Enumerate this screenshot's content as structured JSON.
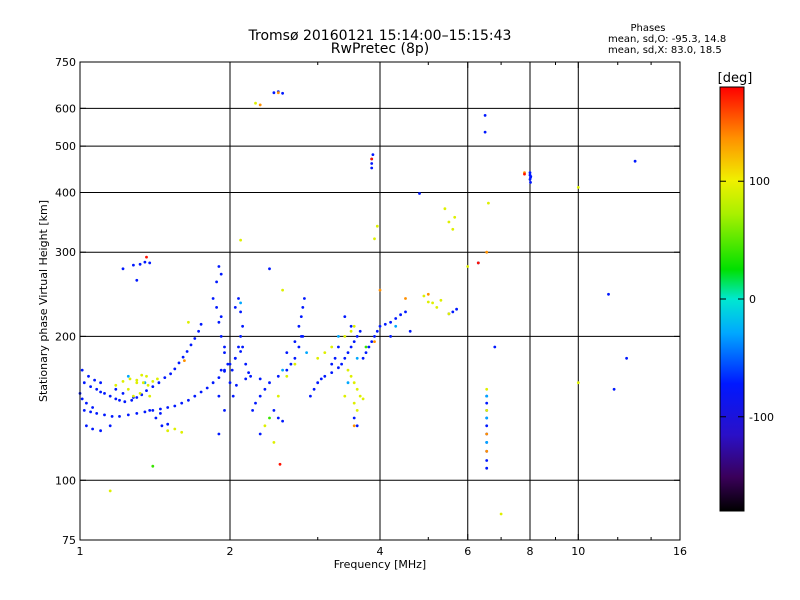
{
  "title": {
    "line1": "Tromsø 20160121 15:14:00–15:15:43",
    "line2": "RwPretec (8p)"
  },
  "stats": {
    "heading": "Phases",
    "o_line": "mean, sd,O: -95.3, 14.8",
    "x_line": "mean, sd,X:  83.0, 18.5"
  },
  "colorbar": {
    "unit_label": "[deg]",
    "ticks": [
      {
        "value": 100,
        "label": "100"
      },
      {
        "value": 0,
        "label": "0"
      },
      {
        "value": -100,
        "label": "-100"
      }
    ],
    "range": [
      -180,
      180
    ]
  },
  "chart_data": {
    "type": "scatter",
    "xlabel": "Frequency [MHz]",
    "ylabel": "Stationary phase Virtual Height [km]",
    "x_scale": "log",
    "y_scale": "log",
    "xlim": [
      1,
      16
    ],
    "ylim": [
      75,
      750
    ],
    "x_ticks": [
      {
        "value": 1,
        "label": "1"
      },
      {
        "value": 2,
        "label": "2"
      },
      {
        "value": 4,
        "label": "4"
      },
      {
        "value": 6,
        "label": "6"
      },
      {
        "value": 8,
        "label": "8"
      },
      {
        "value": 10,
        "label": "10"
      },
      {
        "value": 16,
        "label": "16"
      }
    ],
    "y_ticks": [
      {
        "value": 75,
        "label": "75"
      },
      {
        "value": 100,
        "label": "100"
      },
      {
        "value": 200,
        "label": "200"
      },
      {
        "value": 300,
        "label": "300"
      },
      {
        "value": 400,
        "label": "400"
      },
      {
        "value": 500,
        "label": "500"
      },
      {
        "value": 600,
        "label": "600"
      },
      {
        "value": 750,
        "label": "750"
      }
    ],
    "x_gridlines": [
      2,
      4,
      6,
      8,
      10
    ],
    "y_gridlines": [
      100,
      200,
      300,
      400,
      500,
      600
    ],
    "grid": true,
    "color_encoding": "phase [deg]",
    "series": [
      {
        "trace": "low-frequency O echoes",
        "phase": -100,
        "points": [
          [
            1.02,
            160
          ],
          [
            1.05,
            157
          ],
          [
            1.08,
            155
          ],
          [
            1.1,
            153
          ],
          [
            1.12,
            152
          ],
          [
            1.15,
            150
          ],
          [
            1.18,
            148
          ],
          [
            1.2,
            147
          ],
          [
            1.23,
            146
          ],
          [
            1.27,
            147
          ],
          [
            1.3,
            149
          ],
          [
            1.33,
            151
          ],
          [
            1.36,
            154
          ],
          [
            1.4,
            157
          ],
          [
            1.44,
            160
          ],
          [
            1.48,
            164
          ],
          [
            1.52,
            167
          ],
          [
            1.55,
            171
          ],
          [
            1.58,
            176
          ],
          [
            1.61,
            181
          ],
          [
            1.64,
            186
          ],
          [
            1.67,
            192
          ],
          [
            1.7,
            198
          ],
          [
            1.73,
            205
          ],
          [
            1.75,
            212
          ],
          [
            1.02,
            140
          ],
          [
            1.05,
            139
          ],
          [
            1.08,
            138
          ],
          [
            1.12,
            137
          ],
          [
            1.16,
            136
          ],
          [
            1.2,
            136
          ],
          [
            1.25,
            137
          ],
          [
            1.3,
            138
          ],
          [
            1.35,
            139
          ],
          [
            1.4,
            140
          ],
          [
            1.45,
            141
          ],
          [
            1.5,
            142
          ],
          [
            1.55,
            143
          ],
          [
            1.6,
            145
          ],
          [
            1.65,
            147
          ],
          [
            1.7,
            150
          ],
          [
            1.75,
            153
          ],
          [
            1.8,
            156
          ],
          [
            1.85,
            160
          ],
          [
            1.9,
            164
          ],
          [
            1.95,
            169
          ],
          [
            2.0,
            175
          ],
          [
            2.05,
            180
          ],
          [
            2.1,
            186
          ],
          [
            1.03,
            130
          ],
          [
            1.06,
            128
          ],
          [
            1.1,
            127
          ],
          [
            1.15,
            130
          ],
          [
            1.01,
            170
          ],
          [
            1.04,
            165
          ],
          [
            1.07,
            162
          ],
          [
            1.1,
            160
          ],
          [
            1.18,
            155
          ],
          [
            1.22,
            152
          ],
          [
            1.28,
            149
          ],
          [
            1.01,
            148
          ],
          [
            1.0,
            152
          ],
          [
            1.03,
            145
          ],
          [
            1.06,
            142
          ],
          [
            1.22,
            277
          ],
          [
            1.28,
            282
          ],
          [
            1.32,
            283
          ],
          [
            1.35,
            286
          ],
          [
            1.38,
            285
          ],
          [
            1.3,
            262
          ],
          [
            1.38,
            140
          ],
          [
            1.42,
            135
          ],
          [
            1.46,
            130
          ],
          [
            1.5,
            131
          ],
          [
            1.45,
            138
          ],
          [
            1.9,
            125
          ],
          [
            1.95,
            140
          ],
          [
            1.9,
            150
          ],
          [
            1.92,
            170
          ],
          [
            1.98,
            175
          ],
          [
            1.95,
            185
          ],
          [
            1.92,
            200
          ],
          [
            1.9,
            214
          ],
          [
            1.88,
            230
          ],
          [
            1.85,
            240
          ],
          [
            1.88,
            260
          ],
          [
            1.9,
            280
          ],
          [
            1.92,
            270
          ],
          [
            1.92,
            220
          ],
          [
            1.95,
            190
          ],
          [
            1.95,
            170
          ],
          [
            2.0,
            160
          ],
          [
            2.02,
            170
          ],
          [
            2.05,
            180
          ],
          [
            2.08,
            190
          ],
          [
            2.1,
            200
          ],
          [
            2.12,
            210
          ],
          [
            2.1,
            225
          ],
          [
            2.08,
            240
          ],
          [
            2.05,
            230
          ],
          [
            2.12,
            190
          ],
          [
            2.15,
            175
          ],
          [
            2.18,
            168
          ],
          [
            2.2,
            165
          ],
          [
            2.15,
            163
          ],
          [
            2.06,
            158
          ],
          [
            2.03,
            150
          ],
          [
            2.22,
            140
          ],
          [
            2.25,
            145
          ],
          [
            2.3,
            150
          ],
          [
            2.35,
            155
          ],
          [
            2.4,
            160
          ],
          [
            2.3,
            163
          ],
          [
            2.5,
            165
          ],
          [
            2.6,
            170
          ],
          [
            2.65,
            175
          ],
          [
            2.7,
            180
          ],
          [
            2.75,
            190
          ],
          [
            2.8,
            200
          ],
          [
            2.75,
            210
          ],
          [
            2.78,
            220
          ],
          [
            2.8,
            230
          ],
          [
            2.82,
            240
          ],
          [
            2.78,
            200
          ],
          [
            2.7,
            195
          ],
          [
            2.6,
            185
          ],
          [
            2.45,
            140
          ],
          [
            2.5,
            135
          ],
          [
            2.55,
            133
          ],
          [
            2.3,
            125
          ],
          [
            2.4,
            277
          ],
          [
            2.45,
            647
          ],
          [
            2.5,
            650
          ],
          [
            2.55,
            645
          ],
          [
            2.9,
            150
          ],
          [
            2.95,
            155
          ],
          [
            3.0,
            160
          ],
          [
            3.05,
            163
          ],
          [
            3.1,
            165
          ],
          [
            3.2,
            168
          ],
          [
            3.3,
            172
          ],
          [
            3.35,
            175
          ],
          [
            3.4,
            180
          ],
          [
            3.45,
            185
          ],
          [
            3.5,
            190
          ],
          [
            3.55,
            195
          ],
          [
            3.6,
            200
          ],
          [
            3.65,
            205
          ],
          [
            3.5,
            210
          ],
          [
            3.4,
            220
          ],
          [
            3.3,
            190
          ],
          [
            3.25,
            180
          ],
          [
            3.2,
            175
          ],
          [
            3.7,
            180
          ],
          [
            3.75,
            185
          ],
          [
            3.8,
            190
          ],
          [
            3.85,
            195
          ],
          [
            3.9,
            200
          ],
          [
            3.95,
            205
          ],
          [
            4.0,
            210
          ],
          [
            4.1,
            212
          ],
          [
            4.2,
            214
          ],
          [
            4.3,
            218
          ],
          [
            4.4,
            222
          ],
          [
            4.5,
            225
          ],
          [
            4.2,
            200
          ],
          [
            4.6,
            205
          ],
          [
            3.6,
            130
          ],
          [
            3.55,
            135
          ],
          [
            3.85,
            460
          ],
          [
            3.85,
            470
          ],
          [
            3.87,
            480
          ],
          [
            3.85,
            450
          ],
          [
            4.8,
            398
          ],
          [
            5.5,
            223
          ],
          [
            5.6,
            225
          ],
          [
            5.7,
            228
          ],
          [
            6.3,
            285
          ],
          [
            6.5,
            580
          ],
          [
            6.5,
            535
          ],
          [
            6.8,
            190
          ],
          [
            6.55,
            150
          ],
          [
            6.55,
            145
          ],
          [
            6.55,
            140
          ],
          [
            6.55,
            135
          ],
          [
            6.55,
            130
          ],
          [
            6.55,
            125
          ],
          [
            6.55,
            120
          ],
          [
            6.55,
            115
          ],
          [
            6.55,
            110
          ],
          [
            6.55,
            106
          ],
          [
            8.0,
            426
          ],
          [
            8.02,
            430
          ],
          [
            8.0,
            435
          ],
          [
            8.03,
            432
          ],
          [
            8.02,
            420
          ],
          [
            8.0,
            440
          ],
          [
            11.5,
            245
          ],
          [
            11.8,
            155
          ],
          [
            12.5,
            180
          ],
          [
            13.0,
            465
          ]
        ]
      },
      {
        "trace": "low-frequency O echoes (cyan)",
        "phase": -60,
        "points": [
          [
            1.25,
            165
          ],
          [
            1.35,
            160
          ],
          [
            2.1,
            235
          ],
          [
            2.55,
            170
          ],
          [
            2.85,
            185
          ],
          [
            3.3,
            200
          ],
          [
            3.45,
            160
          ],
          [
            3.6,
            180
          ],
          [
            4.3,
            210
          ],
          [
            6.55,
            150
          ],
          [
            6.55,
            135
          ],
          [
            6.55,
            120
          ]
        ]
      },
      {
        "trace": "scattered X echoes",
        "phase": 90,
        "points": [
          [
            1.18,
            158
          ],
          [
            1.22,
            161
          ],
          [
            1.26,
            163
          ],
          [
            1.3,
            162
          ],
          [
            1.34,
            160
          ],
          [
            1.37,
            158
          ],
          [
            1.4,
            161
          ],
          [
            1.43,
            163
          ],
          [
            1.36,
            165
          ],
          [
            1.33,
            166
          ],
          [
            1.3,
            160
          ],
          [
            1.25,
            155
          ],
          [
            1.28,
            150
          ],
          [
            1.32,
            152
          ],
          [
            1.38,
            150
          ],
          [
            1.5,
            127
          ],
          [
            1.55,
            128
          ],
          [
            1.6,
            126
          ],
          [
            1.65,
            214
          ],
          [
            2.25,
            615
          ],
          [
            2.1,
            318
          ],
          [
            2.55,
            250
          ],
          [
            2.6,
            165
          ],
          [
            2.7,
            175
          ],
          [
            2.5,
            150
          ],
          [
            2.35,
            130
          ],
          [
            2.45,
            120
          ],
          [
            3.0,
            180
          ],
          [
            3.1,
            185
          ],
          [
            3.2,
            190
          ],
          [
            3.4,
            200
          ],
          [
            3.5,
            205
          ],
          [
            3.55,
            210
          ],
          [
            3.45,
            170
          ],
          [
            3.5,
            165
          ],
          [
            3.55,
            160
          ],
          [
            3.6,
            155
          ],
          [
            3.65,
            150
          ],
          [
            3.7,
            148
          ],
          [
            3.4,
            150
          ],
          [
            3.55,
            145
          ],
          [
            3.6,
            140
          ],
          [
            3.9,
            320
          ],
          [
            3.95,
            340
          ],
          [
            4.9,
            243
          ],
          [
            5.0,
            236
          ],
          [
            5.1,
            235
          ],
          [
            5.2,
            230
          ],
          [
            5.3,
            238
          ],
          [
            5.5,
            347
          ],
          [
            5.6,
            335
          ],
          [
            5.65,
            355
          ],
          [
            5.4,
            370
          ],
          [
            5.5,
            223
          ],
          [
            6.0,
            280
          ],
          [
            6.6,
            380
          ],
          [
            6.55,
            155
          ],
          [
            6.55,
            140
          ],
          [
            7.0,
            85
          ],
          [
            10.0,
            410
          ],
          [
            10.0,
            160
          ],
          [
            1.15,
            95
          ]
        ]
      },
      {
        "trace": "scattered X echoes (orange)",
        "phase": 140,
        "points": [
          [
            1.62,
            178
          ],
          [
            2.3,
            610
          ],
          [
            2.5,
            647
          ],
          [
            3.55,
            130
          ],
          [
            3.9,
            195
          ],
          [
            4.0,
            250
          ],
          [
            4.5,
            240
          ],
          [
            5.0,
            245
          ],
          [
            6.55,
            300
          ],
          [
            6.55,
            125
          ],
          [
            6.55,
            115
          ],
          [
            7.8,
            440
          ]
        ]
      },
      {
        "trace": "isolated echoes (green)",
        "phase": 20,
        "points": [
          [
            1.4,
            107
          ],
          [
            2.4,
            135
          ],
          [
            3.75,
            190
          ]
        ]
      },
      {
        "trace": "isolated echoes (red/black)",
        "phase": 175,
        "points": [
          [
            1.36,
            293
          ],
          [
            2.52,
            108
          ],
          [
            3.85,
            470
          ],
          [
            6.3,
            285
          ],
          [
            7.8,
            437
          ]
        ]
      }
    ]
  }
}
